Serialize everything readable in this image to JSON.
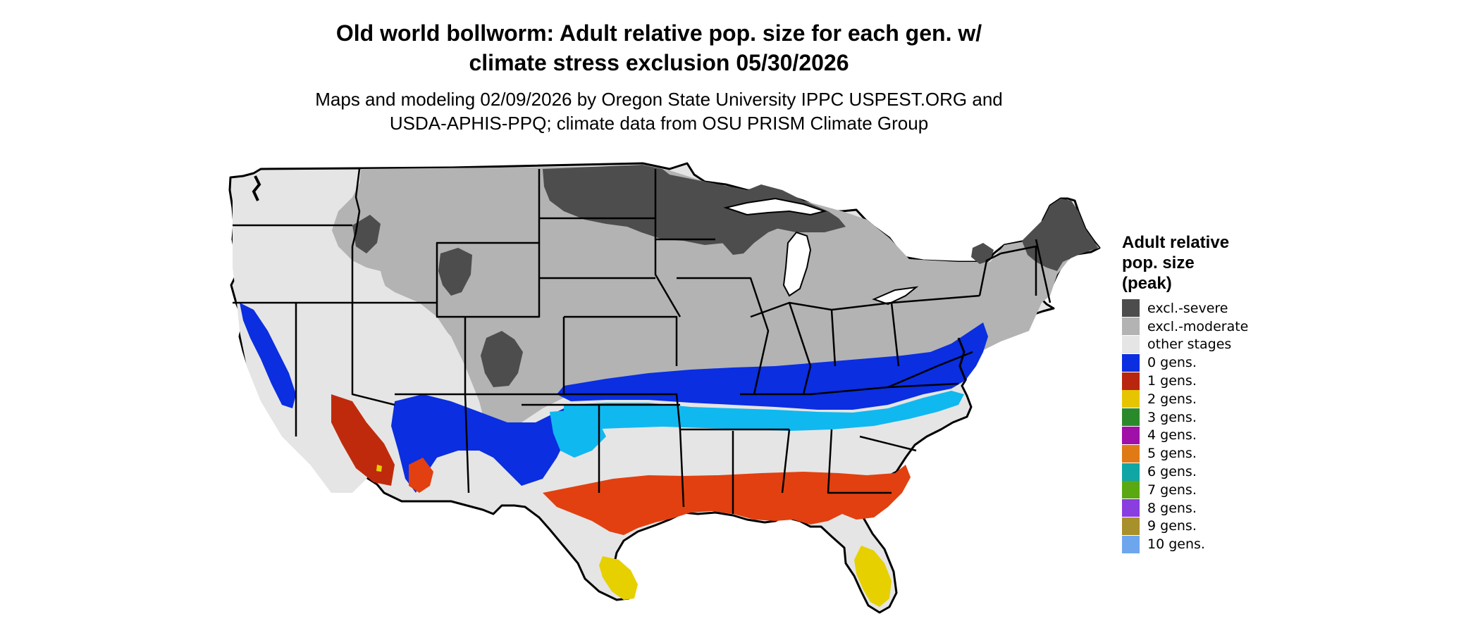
{
  "title_line1": "Old world bollworm: Adult relative pop. size for each gen. w/",
  "title_line2": "climate stress exclusion 05/30/2026",
  "subtitle_line1": "Maps and modeling 02/09/2026 by Oregon State University IPPC USPEST.ORG and",
  "subtitle_line2": "USDA-APHIS-PPQ; climate data from OSU PRISM Climate Group",
  "legend": {
    "title_line1": "Adult relative",
    "title_line2": "pop. size",
    "title_line3": "(peak)",
    "items": [
      {
        "label": "excl.-severe",
        "color": "#4d4d4d"
      },
      {
        "label": "excl.-moderate",
        "color": "#b3b3b3"
      },
      {
        "label": "other stages",
        "color": "#e5e5e5"
      },
      {
        "label": "0 gens.",
        "color": "#0a2ee0"
      },
      {
        "label": "1 gens.",
        "color": "#b8260f"
      },
      {
        "label": "2 gens.",
        "color": "#e6c400"
      },
      {
        "label": "3 gens.",
        "color": "#2a8a2a"
      },
      {
        "label": "4 gens.",
        "color": "#a00fa8"
      },
      {
        "label": "5 gens.",
        "color": "#e07a14"
      },
      {
        "label": "6 gens.",
        "color": "#11a6a6"
      },
      {
        "label": "7 gens.",
        "color": "#5aa812"
      },
      {
        "label": "8 gens.",
        "color": "#8a3ee0"
      },
      {
        "label": "9 gens.",
        "color": "#a8902a"
      },
      {
        "label": "10 gens.",
        "color": "#6ea6ee"
      }
    ]
  },
  "map_colors": {
    "severe": "#4d4d4d",
    "moderate": "#b3b3b3",
    "other": "#e5e5e5",
    "blue": "#0a2ee0",
    "cyan": "#10b8f0",
    "red": "#e24010",
    "darkred": "#c02a0c",
    "yellow": "#e6d000",
    "border": "#000000"
  }
}
